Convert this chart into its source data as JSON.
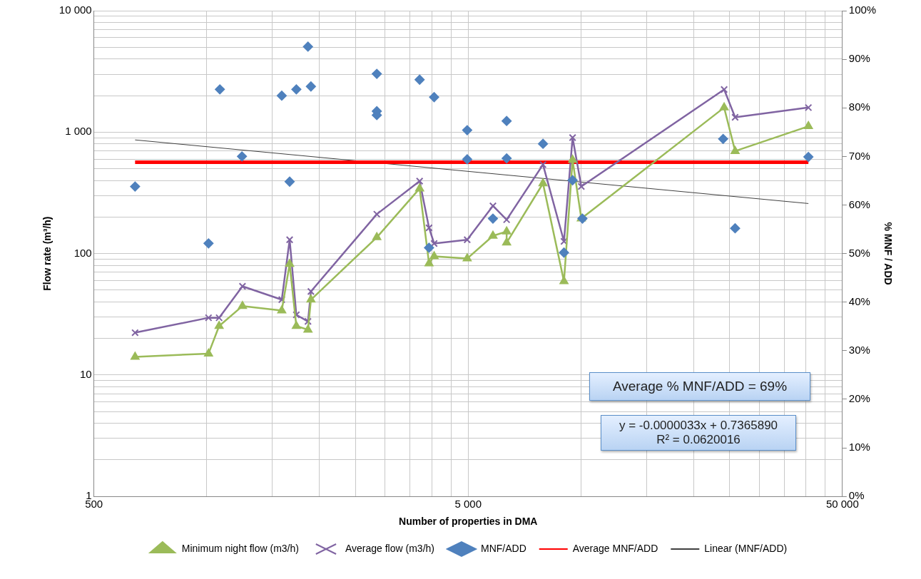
{
  "chart_data": {
    "type": "line",
    "xlabel": "Number of properties in DMA",
    "ylabel": "Flow rate (m³/h)",
    "y2label": "% MNF / ADD",
    "log": "xy",
    "grid": true,
    "legend": "bottom",
    "xlim": [
      500,
      50000
    ],
    "xticks": [
      500,
      {
        "value": 1000,
        "label": null
      },
      {
        "value": 1500,
        "label": null
      },
      {
        "value": 2000,
        "label": null
      },
      {
        "value": 2500,
        "label": null
      },
      {
        "value": 3000,
        "label": null
      },
      {
        "value": 3500,
        "label": null
      },
      {
        "value": 4000,
        "label": null
      },
      {
        "value": 4500,
        "label": null
      },
      {
        "value": 5000,
        "label": "5 000"
      },
      {
        "value": 10000,
        "label": null
      },
      {
        "value": 15000,
        "label": null
      },
      {
        "value": 20000,
        "label": null
      },
      {
        "value": 25000,
        "label": null
      },
      {
        "value": 30000,
        "label": null
      },
      {
        "value": 35000,
        "label": null
      },
      {
        "value": 40000,
        "label": null
      },
      {
        "value": 45000,
        "label": null
      },
      {
        "value": 50000,
        "label": "50 000"
      }
    ],
    "ylim": [
      1,
      10000
    ],
    "yticks": [
      1,
      {
        "value": 2,
        "label": null
      },
      {
        "value": 3,
        "label": null
      },
      {
        "value": 4,
        "label": null
      },
      {
        "value": 5,
        "label": null
      },
      {
        "value": 6,
        "label": null
      },
      {
        "value": 7,
        "label": null
      },
      {
        "value": 8,
        "label": null
      },
      {
        "value": 9,
        "label": null
      },
      10,
      {
        "value": 20,
        "label": null
      },
      {
        "value": 30,
        "label": null
      },
      {
        "value": 40,
        "label": null
      },
      {
        "value": 50,
        "label": null
      },
      {
        "value": 60,
        "label": null
      },
      {
        "value": 70,
        "label": null
      },
      {
        "value": 80,
        "label": null
      },
      {
        "value": 90,
        "label": null
      },
      100,
      {
        "value": 200,
        "label": null
      },
      {
        "value": 300,
        "label": null
      },
      {
        "value": 400,
        "label": null
      },
      {
        "value": 500,
        "label": null
      },
      {
        "value": 600,
        "label": null
      },
      {
        "value": 700,
        "label": null
      },
      {
        "value": 800,
        "label": null
      },
      {
        "value": 900,
        "label": null
      },
      {
        "value": 1000,
        "label": "1 000"
      },
      {
        "value": 2000,
        "label": null
      },
      {
        "value": 3000,
        "label": null
      },
      {
        "value": 4000,
        "label": null
      },
      {
        "value": 5000,
        "label": null
      },
      {
        "value": 6000,
        "label": null
      },
      {
        "value": 7000,
        "label": null
      },
      {
        "value": 8000,
        "label": null
      },
      {
        "value": 9000,
        "label": null
      },
      {
        "value": 10000,
        "label": "10 000"
      }
    ],
    "y2lim": [
      0,
      100
    ],
    "y2ticks": [
      {
        "value": 0,
        "label": "0%"
      },
      {
        "value": 10,
        "label": "10%"
      },
      {
        "value": 20,
        "label": "20%"
      },
      {
        "value": 30,
        "label": "30%"
      },
      {
        "value": 40,
        "label": "40%"
      },
      {
        "value": 50,
        "label": "50%"
      },
      {
        "value": 60,
        "label": "60%"
      },
      {
        "value": 70,
        "label": "70%"
      },
      {
        "value": 80,
        "label": "80%"
      },
      {
        "value": 90,
        "label": "90%"
      },
      {
        "value": 100,
        "label": "100%"
      }
    ],
    "annotations": [
      "Average % MNF/ADD = 69%",
      "y = -0.0000033x + 0.7365890\nR² = 0.0620016"
    ],
    "series": [
      {
        "name": "Minimum night flow (m3/h)",
        "type": "line",
        "marker": "triangle",
        "color": "#9bbb59",
        "x": [
          644,
          1012,
          1080,
          1247,
          1588,
          1667,
          1737,
          1866,
          1900,
          2850,
          3709,
          3930,
          4055,
          4970,
          5823,
          6335,
          6335,
          7923,
          9015,
          9505,
          10030,
          24150,
          25840,
          40560
        ],
        "values": [
          14.1,
          15,
          25.3,
          37,
          34,
          82,
          25.3,
          23.6,
          41.7,
          136,
          343,
          83,
          95,
          91,
          140,
          152,
          123,
          378,
          59,
          590,
          194,
          1593,
          698,
          1117
        ]
      },
      {
        "name": "Average flow (m3/h)",
        "type": "line",
        "marker": "cross",
        "color": "#8064a2",
        "x": [
          644,
          1012,
          1080,
          1247,
          1588,
          1667,
          1737,
          1866,
          1900,
          2850,
          3709,
          3930,
          4055,
          4970,
          5823,
          6335,
          7923,
          9015,
          9505,
          10030,
          24150,
          25840,
          40560
        ],
        "values": [
          22.3,
          29.6,
          29.6,
          53.8,
          41.7,
          130,
          31.3,
          27.6,
          48.7,
          211,
          395,
          163,
          121,
          130,
          247,
          190,
          540,
          126,
          902,
          357,
          2243,
          1325,
          1593
        ]
      },
      {
        "name": "MNF/ADD",
        "type": "scatter",
        "marker": "diamond",
        "color": "#4f81bd",
        "axis": "y2",
        "x": [
          644,
          1012,
          1085,
          1243,
          1588,
          1667,
          1737,
          1866,
          1900,
          2850,
          2850,
          2850,
          3709,
          3930,
          4055,
          4970,
          4970,
          5823,
          6335,
          6335,
          7923,
          9015,
          9505,
          10100,
          24000,
          25840,
          40560
        ],
        "values": [
          63.8,
          52.1,
          83.8,
          70.0,
          82.5,
          64.8,
          83.8,
          92.6,
          84.4,
          87.0,
          79.3,
          78.5,
          85.8,
          51.2,
          82.2,
          75.4,
          69.4,
          57.2,
          77.3,
          69.6,
          72.6,
          50.2,
          65.1,
          57.2,
          73.6,
          55.2,
          69.9
        ]
      },
      {
        "name": "Average MNF/ADD",
        "type": "line",
        "marker": "none",
        "color": "#ff0000",
        "axis": "y2",
        "x": [
          644,
          40560
        ],
        "values": [
          68.8,
          68.8
        ]
      },
      {
        "name": "Linear (MNF/ADD)",
        "type": "line",
        "marker": "none",
        "color": "#404040",
        "axis": "y2",
        "x": [
          644,
          40560
        ],
        "values": [
          73.4,
          60.3
        ]
      }
    ]
  }
}
